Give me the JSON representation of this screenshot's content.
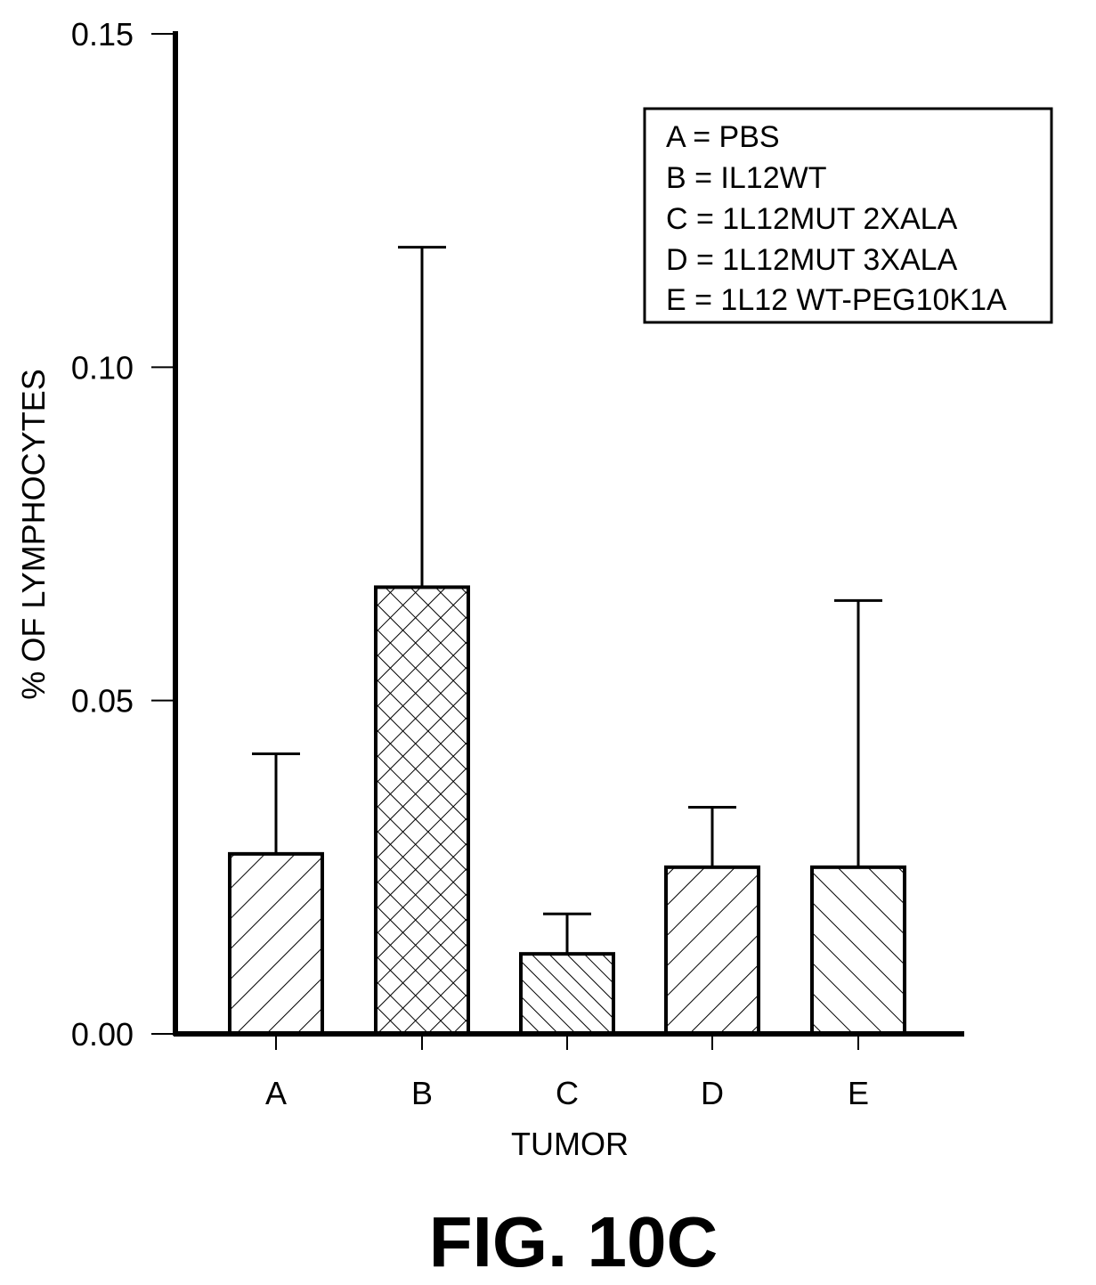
{
  "chart_data": {
    "type": "bar",
    "categories": [
      "A",
      "B",
      "C",
      "D",
      "E"
    ],
    "values": [
      0.027,
      0.067,
      0.012,
      0.025,
      0.025
    ],
    "error_upper": [
      0.042,
      0.118,
      0.018,
      0.034,
      0.065
    ],
    "ylabel": "% OF LYMPHOCYTES",
    "xlabel": "TUMOR",
    "ylim": [
      0,
      0.15
    ],
    "yticks": [
      "0.00",
      "0.05",
      "0.10",
      "0.15"
    ],
    "patterns": [
      "diag-forward",
      "crosshatch",
      "diag-back-dense",
      "diag-forward",
      "diag-back"
    ],
    "legend": {
      "placement": "top-right",
      "entries": [
        "A = PBS",
        "B = IL12WT",
        "C = 1L12MUT 2XALA",
        "D = 1L12MUT 3XALA",
        "E = 1L12 WT-PEG10K1A"
      ]
    }
  },
  "caption": "FIG. 10C"
}
